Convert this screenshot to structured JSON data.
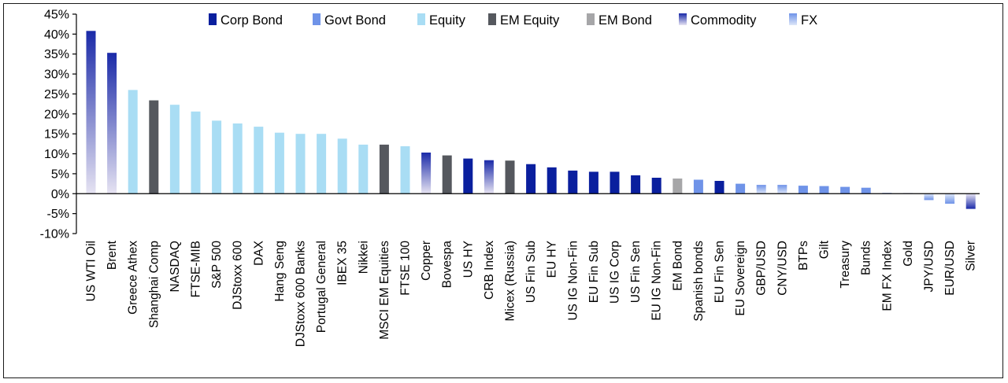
{
  "chart_data": {
    "type": "bar",
    "title": "",
    "xlabel": "",
    "ylabel": "",
    "ylim": [
      -10,
      45
    ],
    "yticks": [
      "45%",
      "40%",
      "35%",
      "30%",
      "25%",
      "20%",
      "15%",
      "10%",
      "5%",
      "0%",
      "-5%",
      "-10%"
    ],
    "grid": false,
    "legend_position": "top",
    "legend": [
      "Corp Bond",
      "Govt Bond",
      "Equity",
      "EM Equity",
      "EM Bond",
      "Commodity",
      "FX"
    ],
    "categories": [
      "US WTI Oil",
      "Brent",
      "Greece Athex",
      "Shanghai Comp",
      "NASDAQ",
      "FTSE-MIB",
      "S&P 500",
      "DJStoxx 600",
      "DAX",
      "Hang Seng",
      "DJStoxx 600 Banks",
      "Portugal General",
      "IBEX 35",
      "Nikkei",
      "MSCI EM Equities",
      "FTSE 100",
      "Copper",
      "Bovespa",
      "US HY",
      "CRB Index",
      "Micex (Russia)",
      "US Fin Sub",
      "EU HY",
      "US IG Non-Fin",
      "EU Fin Sub",
      "US IG Corp",
      "US Fin Sen",
      "EU IG Non-Fin",
      "EM Bond",
      "Spanish bonds",
      "EU Fin Sen",
      "EU Sovereign",
      "GBP/USD",
      "CNY/USD",
      "BTPs",
      "Gilt",
      "Treasury",
      "Bunds",
      "EM FX Index",
      "Gold",
      "JPY/USD",
      "EUR/USD",
      "Silver"
    ],
    "values": [
      40.8,
      35.3,
      26.0,
      23.4,
      22.3,
      20.6,
      18.3,
      17.6,
      16.8,
      15.3,
      15.0,
      15.0,
      13.8,
      12.3,
      12.3,
      11.9,
      10.3,
      9.6,
      8.8,
      8.4,
      8.3,
      7.4,
      6.6,
      5.8,
      5.5,
      5.5,
      4.6,
      4.0,
      3.8,
      3.5,
      3.2,
      2.5,
      2.2,
      2.2,
      2.0,
      1.9,
      1.7,
      1.5,
      0.2,
      0.1,
      -1.6,
      -2.5,
      -3.8
    ],
    "asset_classes": [
      "Commodity",
      "Commodity",
      "Equity",
      "EM Equity",
      "Equity",
      "Equity",
      "Equity",
      "Equity",
      "Equity",
      "Equity",
      "Equity",
      "Equity",
      "Equity",
      "Equity",
      "EM Equity",
      "Equity",
      "Commodity",
      "EM Equity",
      "Corp Bond",
      "Commodity",
      "EM Equity",
      "Corp Bond",
      "Corp Bond",
      "Corp Bond",
      "Corp Bond",
      "Corp Bond",
      "Corp Bond",
      "Corp Bond",
      "EM Bond",
      "Govt Bond",
      "Corp Bond",
      "Govt Bond",
      "FX",
      "FX",
      "Govt Bond",
      "Govt Bond",
      "Govt Bond",
      "Govt Bond",
      "FX",
      "Commodity",
      "FX",
      "FX",
      "Commodity"
    ],
    "colors": {
      "Corp Bond": "#0a1f9e",
      "Govt Bond": "#6f93e8",
      "Equity": "#a9ddf4",
      "EM Equity": "#55585e",
      "EM Bond": "#a6a6a8",
      "Commodity": "#1a2aa8",
      "Commodity_fade": "#e6e3f2",
      "FX": "#6f93e8",
      "FX_fade": "#dde6f8"
    }
  }
}
